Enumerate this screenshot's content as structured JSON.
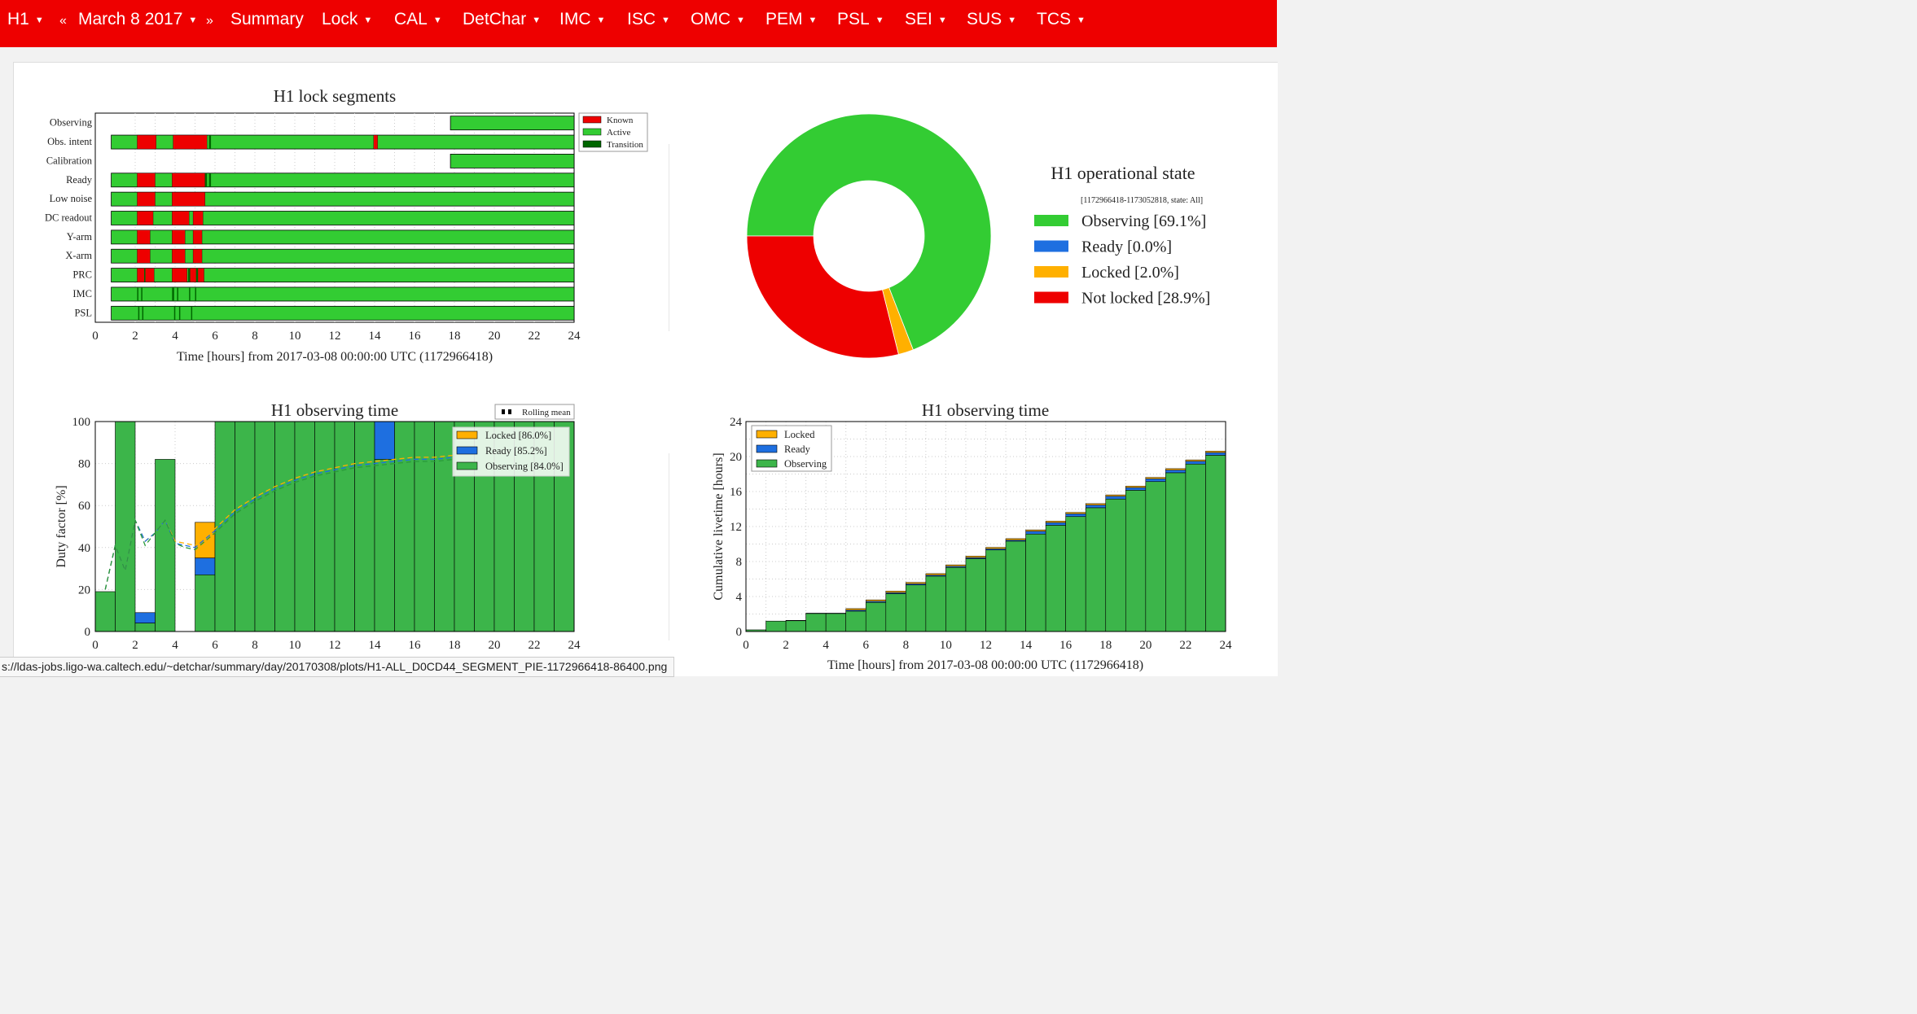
{
  "navbar": {
    "items": [
      {
        "label": "H1",
        "caret": true
      },
      {
        "label": "«",
        "caret": false
      },
      {
        "label": "March 8 2017",
        "caret": true
      },
      {
        "label": "»",
        "caret": false
      },
      {
        "label": "Summary",
        "caret": false
      },
      {
        "label": "Lock",
        "caret": true
      },
      {
        "label": "CAL",
        "caret": true
      },
      {
        "label": "DetChar",
        "caret": true
      },
      {
        "label": "IMC",
        "caret": true
      },
      {
        "label": "ISC",
        "caret": true
      },
      {
        "label": "OMC",
        "caret": true
      },
      {
        "label": "PEM",
        "caret": true
      },
      {
        "label": "PSL",
        "caret": true
      },
      {
        "label": "SEI",
        "caret": true
      },
      {
        "label": "SUS",
        "caret": true
      },
      {
        "label": "TCS",
        "caret": true
      }
    ]
  },
  "status_url": "s://ldas-jobs.ligo-wa.caltech.edu/~detchar/summary/day/20170308/plots/H1-ALL_D0CD44_SEGMENT_PIE-1172966418-86400.png",
  "colors": {
    "navbar": "#ee0000",
    "active": "#33cc33",
    "known": "#ee0000",
    "transition": "#006600",
    "observing": "#33cc33",
    "ready": "#1e6fe0",
    "locked": "#ffb000",
    "not_locked": "#ee0000"
  },
  "chart_data": [
    {
      "type": "timeline",
      "title": "H1 lock segments",
      "xlabel": "Time [hours] from 2017-03-08 00:00:00 UTC (1172966418)",
      "xlim": [
        0,
        24
      ],
      "xticks": [
        "0",
        "2",
        "4",
        "6",
        "8",
        "10",
        "12",
        "14",
        "16",
        "18",
        "20",
        "22",
        "24"
      ],
      "legend": {
        "position": "top-right",
        "entries": [
          "Known",
          "Active",
          "Transition"
        ]
      },
      "rows": [
        {
          "label": "Observing",
          "active": [
            [
              17.8,
              24
            ]
          ],
          "known": [],
          "transition": []
        },
        {
          "label": "Obs. intent",
          "active": [
            [
              0.8,
              24
            ]
          ],
          "known": [
            [
              2.1,
              3.05
            ],
            [
              3.9,
              5.6
            ],
            [
              13.95,
              14.15
            ]
          ],
          "transition": [
            [
              5.7,
              5.8
            ]
          ]
        },
        {
          "label": "Calibration",
          "active": [
            [
              17.8,
              24
            ]
          ],
          "known": [],
          "transition": []
        },
        {
          "label": "Ready",
          "active": [
            [
              0.8,
              24
            ]
          ],
          "known": [
            [
              2.1,
              3.0
            ],
            [
              3.85,
              5.5
            ]
          ],
          "transition": [
            [
              5.5,
              5.6
            ],
            [
              5.7,
              5.8
            ]
          ]
        },
        {
          "label": "Low noise",
          "active": [
            [
              0.8,
              24
            ]
          ],
          "known": [
            [
              2.1,
              3.0
            ],
            [
              3.85,
              5.5
            ]
          ],
          "transition": []
        },
        {
          "label": "DC readout",
          "active": [
            [
              0.8,
              24
            ]
          ],
          "known": [
            [
              2.1,
              2.9
            ],
            [
              3.85,
              4.7
            ],
            [
              4.9,
              5.4
            ]
          ],
          "transition": []
        },
        {
          "label": "Y-arm",
          "active": [
            [
              0.8,
              24
            ]
          ],
          "known": [
            [
              2.1,
              2.75
            ],
            [
              3.85,
              4.5
            ],
            [
              4.9,
              5.35
            ]
          ],
          "transition": []
        },
        {
          "label": "X-arm",
          "active": [
            [
              0.8,
              24
            ]
          ],
          "known": [
            [
              2.1,
              2.75
            ],
            [
              3.85,
              4.5
            ],
            [
              4.9,
              5.35
            ]
          ],
          "transition": []
        },
        {
          "label": "PRC",
          "active": [
            [
              0.8,
              24
            ]
          ],
          "known": [
            [
              2.1,
              2.95
            ],
            [
              3.85,
              4.6
            ],
            [
              4.75,
              5.45
            ]
          ],
          "transition": [
            [
              2.45,
              2.5
            ],
            [
              4.65,
              4.75
            ],
            [
              5.05,
              5.15
            ]
          ]
        },
        {
          "label": "IMC",
          "active": [
            [
              0.8,
              24
            ]
          ],
          "known": [],
          "transition": [
            [
              2.1,
              2.15
            ],
            [
              2.3,
              2.35
            ],
            [
              3.85,
              3.95
            ],
            [
              4.1,
              4.15
            ],
            [
              4.7,
              4.75
            ],
            [
              5.0,
              5.05
            ]
          ]
        },
        {
          "label": "PSL",
          "active": [
            [
              0.8,
              24
            ]
          ],
          "known": [],
          "transition": [
            [
              2.15,
              2.2
            ],
            [
              2.35,
              2.4
            ],
            [
              3.95,
              4.0
            ],
            [
              4.2,
              4.25
            ],
            [
              4.8,
              4.85
            ]
          ]
        }
      ]
    },
    {
      "type": "pie",
      "title": "H1 operational state",
      "subtitle": "[1172966418-1173052818, state: All]",
      "slices": [
        {
          "name": "Observing",
          "value": 69.1,
          "label": "Observing [69.1%]"
        },
        {
          "name": "Ready",
          "value": 0.0,
          "label": "Ready [0.0%]"
        },
        {
          "name": "Locked",
          "value": 2.0,
          "label": "Locked [2.0%]"
        },
        {
          "name": "Not locked",
          "value": 28.9,
          "label": "Not locked [28.9%]"
        }
      ]
    },
    {
      "type": "bar",
      "title": "H1 observing time",
      "ylabel": "Duty factor [%]",
      "xlim": [
        0,
        24
      ],
      "ylim": [
        0,
        100
      ],
      "xticks": [
        "0",
        "2",
        "4",
        "6",
        "8",
        "10",
        "12",
        "14",
        "16",
        "18",
        "20",
        "22",
        "24"
      ],
      "yticks": [
        "0",
        "20",
        "40",
        "60",
        "80",
        "100"
      ],
      "legend_top": "Rolling mean",
      "legend": [
        {
          "name": "Locked",
          "label": "Locked [86.0%]"
        },
        {
          "name": "Ready",
          "label": "Ready [85.2%]"
        },
        {
          "name": "Observing",
          "label": "Observing [84.0%]"
        }
      ],
      "hours": [
        0,
        1,
        2,
        3,
        4,
        5,
        6,
        7,
        8,
        9,
        10,
        11,
        12,
        13,
        14,
        15,
        16,
        17,
        18,
        19,
        20,
        21,
        22,
        23
      ],
      "observing": [
        19,
        100,
        4,
        82,
        0,
        27,
        100,
        100,
        100,
        100,
        100,
        100,
        100,
        100,
        82,
        100,
        100,
        100,
        100,
        100,
        100,
        100,
        100,
        100
      ],
      "ready": [
        19,
        100,
        9,
        82,
        0,
        35,
        100,
        100,
        100,
        100,
        100,
        100,
        100,
        100,
        100,
        100,
        100,
        100,
        100,
        100,
        100,
        100,
        100,
        100
      ],
      "locked": [
        19,
        100,
        9,
        82,
        0,
        52,
        100,
        100,
        100,
        100,
        100,
        100,
        100,
        100,
        100,
        100,
        100,
        100,
        100,
        100,
        100,
        100,
        100,
        100
      ],
      "rolling_mean": {
        "x": [
          0.5,
          1,
          1.5,
          2,
          2.5,
          3,
          3.5,
          4,
          4.5,
          5,
          6,
          7,
          8,
          9,
          10,
          11,
          12,
          13,
          14,
          15,
          16,
          17,
          18
        ],
        "observing": [
          20,
          41,
          29,
          53,
          41,
          47,
          53,
          42,
          40,
          39,
          47,
          56,
          62,
          67,
          71,
          74,
          76,
          78,
          79,
          80,
          81,
          81,
          82
        ],
        "ready": [
          20,
          41,
          29,
          53,
          43,
          47,
          53,
          42,
          41,
          40,
          48,
          57,
          63,
          68,
          72,
          75,
          77,
          79,
          80,
          81,
          82,
          82,
          83
        ],
        "locked": [
          20,
          41,
          29,
          53,
          43,
          47,
          53,
          43,
          42,
          41,
          49,
          58,
          64,
          69,
          73,
          76,
          78,
          80,
          81,
          82,
          83,
          83,
          84
        ]
      }
    },
    {
      "type": "bar",
      "title": "H1 observing time",
      "xlabel": "Time [hours] from 2017-03-08 00:00:00 UTC (1172966418)",
      "ylabel": "Cumulative livetime [hours]",
      "xlim": [
        0,
        24
      ],
      "ylim": [
        0,
        24
      ],
      "xticks": [
        "0",
        "2",
        "4",
        "6",
        "8",
        "10",
        "12",
        "14",
        "16",
        "18",
        "20",
        "22",
        "24"
      ],
      "yticks": [
        "0",
        "4",
        "8",
        "12",
        "16",
        "20",
        "24"
      ],
      "legend": [
        {
          "name": "Locked",
          "label": "Locked"
        },
        {
          "name": "Ready",
          "label": "Ready"
        },
        {
          "name": "Observing",
          "label": "Observing"
        }
      ],
      "hours": [
        0,
        1,
        2,
        3,
        4,
        5,
        6,
        7,
        8,
        9,
        10,
        11,
        12,
        13,
        14,
        15,
        16,
        17,
        18,
        19,
        20,
        21,
        22,
        23
      ],
      "observing": [
        0.19,
        1.19,
        1.23,
        2.05,
        2.05,
        2.32,
        3.32,
        4.32,
        5.32,
        6.32,
        7.32,
        8.32,
        9.32,
        10.32,
        11.14,
        12.14,
        13.14,
        14.14,
        15.14,
        16.14,
        17.14,
        18.14,
        19.14,
        20.14
      ],
      "ready": [
        0.19,
        1.19,
        1.28,
        2.1,
        2.1,
        2.45,
        3.45,
        4.45,
        5.45,
        6.45,
        7.45,
        8.45,
        9.45,
        10.45,
        11.45,
        12.45,
        13.45,
        14.45,
        15.45,
        16.45,
        17.45,
        18.45,
        19.45,
        20.45
      ],
      "locked": [
        0.19,
        1.19,
        1.28,
        2.1,
        2.1,
        2.62,
        3.62,
        4.62,
        5.62,
        6.62,
        7.62,
        8.62,
        9.62,
        10.62,
        11.62,
        12.62,
        13.62,
        14.62,
        15.62,
        16.62,
        17.62,
        18.62,
        19.62,
        20.62
      ]
    }
  ]
}
